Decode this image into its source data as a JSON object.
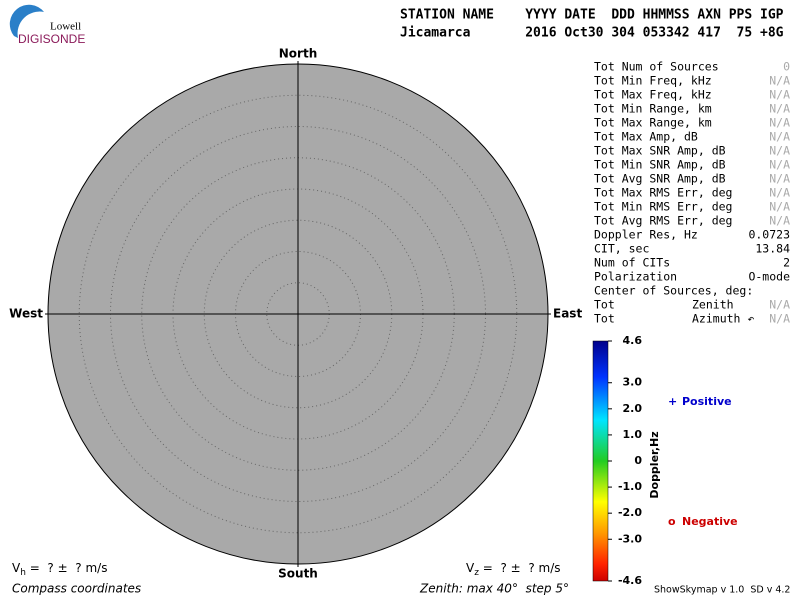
{
  "logo": {
    "line1": "Lowell",
    "line2": "DIGISONDE"
  },
  "header": {
    "labels": "STATION NAME    YYYY DATE  DDD HHMMSS AXN PPS IGP",
    "values": "Jicamarca       2016 Oct30 304 053342 417  75 +8G"
  },
  "stats": {
    "rows": [
      {
        "label": "Tot Num of Sources",
        "value": "0",
        "color": "#aaaaaa"
      },
      {
        "label": "Tot Min Freq, kHz",
        "value": "N/A",
        "color": "#aaaaaa"
      },
      {
        "label": "Tot Max Freq, kHz",
        "value": "N/A",
        "color": "#aaaaaa"
      },
      {
        "label": "Tot Min Range, km",
        "value": "N/A",
        "color": "#aaaaaa"
      },
      {
        "label": "Tot Max Range, km",
        "value": "N/A",
        "color": "#aaaaaa"
      },
      {
        "label": "Tot Max Amp, dB",
        "value": "N/A",
        "color": "#aaaaaa"
      },
      {
        "label": "Tot Max SNR Amp, dB",
        "value": "N/A",
        "color": "#aaaaaa"
      },
      {
        "label": "Tot Min SNR Amp, dB",
        "value": "N/A",
        "color": "#aaaaaa"
      },
      {
        "label": "Tot Avg SNR Amp, dB",
        "value": "N/A",
        "color": "#aaaaaa"
      },
      {
        "label": "Tot Max RMS Err, deg",
        "value": "N/A",
        "color": "#aaaaaa"
      },
      {
        "label": "Tot Min RMS Err, deg",
        "value": "N/A",
        "color": "#aaaaaa"
      },
      {
        "label": "Tot Avg RMS Err, deg",
        "value": "N/A",
        "color": "#aaaaaa"
      },
      {
        "label": "Doppler Res, Hz",
        "value": "0.0723",
        "color": "#000000"
      },
      {
        "label": "CIT, sec",
        "value": "13.84",
        "color": "#000000"
      },
      {
        "label": "Num of CITs",
        "value": "2",
        "color": "#000000"
      },
      {
        "label": "Polarization",
        "value": "O-mode",
        "color": "#000000"
      },
      {
        "label": "Center of Sources, deg:"
      },
      {
        "label": "Tot",
        "label2": "Zenith",
        "value": "N/A",
        "color": "#aaaaaa"
      },
      {
        "label": "Tot",
        "label2": "Azimuth ↶",
        "value": "N/A",
        "color": "#aaaaaa"
      }
    ]
  },
  "chart_data": {
    "type": "skymap",
    "directions": {
      "north": "North",
      "south": "South",
      "west": "West",
      "east": "East"
    },
    "rlim": [
      0,
      40
    ],
    "rticks": [
      5,
      10,
      15,
      20,
      25,
      30,
      35
    ],
    "fill": "#a9a9a9",
    "colorbar": {
      "label": "Doppler,Hz",
      "lim": [
        -4.6,
        4.6
      ],
      "ticks": [
        4.6,
        {
          "value": 3,
          "label": "3.0"
        },
        {
          "value": 2,
          "label": "2.0"
        },
        {
          "value": 1,
          "label": "1.0"
        },
        0,
        {
          "value": -1,
          "label": "-1.0"
        },
        {
          "value": -2,
          "label": "-2.0"
        },
        {
          "value": -3,
          "label": "-3.0"
        },
        -4.6
      ]
    },
    "legend": {
      "positive": "Positive",
      "positive_color": "#0000cc",
      "negative": "Negative",
      "negative_color": "#cc0000"
    }
  },
  "footer": {
    "vh_symbol": "V",
    "vh_sub": "h",
    "vh_text": " =  ? ±  ? m/s",
    "vz_symbol": "V",
    "vz_sub": "z",
    "vz_text": " =  ? ±  ? m/s",
    "left": "Compass coordinates",
    "center": "Zenith: max 40°  step 5°",
    "right": "ShowSkymap v 1.0  SD v 4.2"
  }
}
